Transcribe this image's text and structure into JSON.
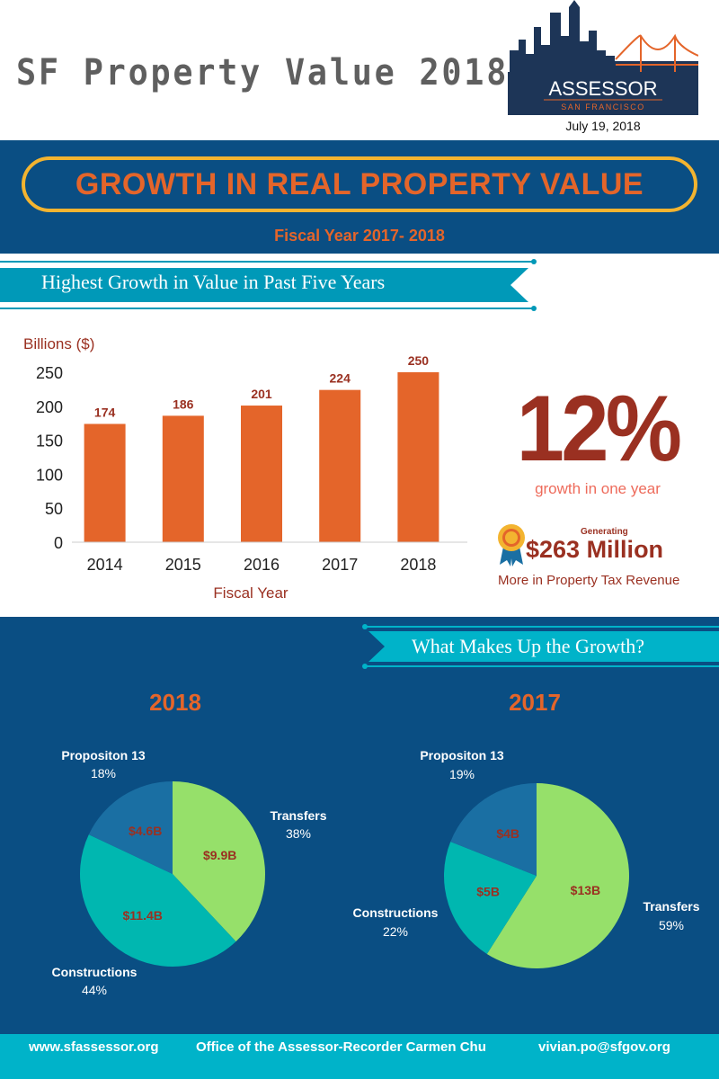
{
  "header": {
    "title": "SF Property Value 2018",
    "logo_text": "ASSESSOR",
    "logo_sub": "SAN FRANCISCO",
    "date": "July 19, 2018"
  },
  "band": {
    "title": "GROWTH IN REAL PROPERTY VALUE",
    "subtitle": "Fiscal Year 2017- 2018"
  },
  "section1": {
    "ribbon": "Highest Growth in Value in Past Five Years"
  },
  "section2": {
    "ribbon": "What Makes Up the  Growth?"
  },
  "highlight": {
    "percent": "12%",
    "percent_caption": "growth in one year",
    "generating_label": "Generating",
    "amount": "$263 Million",
    "amount_caption": "More in Property Tax Revenue"
  },
  "chart_data": [
    {
      "type": "bar",
      "categories": [
        "2014",
        "2015",
        "2016",
        "2017",
        "2018"
      ],
      "values": [
        174,
        186,
        201,
        224,
        250
      ],
      "data_labels": [
        "174",
        "186",
        "201",
        "224",
        "250"
      ],
      "title": "",
      "xlabel": "Fiscal Year",
      "ylabel": "Billions ($)",
      "ylim": [
        0,
        250
      ],
      "yticks": [
        0,
        50,
        100,
        150,
        200,
        250
      ],
      "grid": false,
      "bar_color": "#e4652a"
    },
    {
      "type": "pie",
      "title": "2018",
      "slices": [
        {
          "label": "Transfers",
          "percent": 38,
          "value_label": "$9.9B",
          "color": "#96e06a"
        },
        {
          "label": "Constructions",
          "percent": 44,
          "value_label": "$11.4B",
          "color": "#00b7b0"
        },
        {
          "label": "Propositon 13",
          "percent": 18,
          "value_label": "$4.6B",
          "color": "#1a6fa3"
        }
      ]
    },
    {
      "type": "pie",
      "title": "2017",
      "slices": [
        {
          "label": "Transfers",
          "percent": 59,
          "value_label": "$13B",
          "color": "#96e06a"
        },
        {
          "label": "Constructions",
          "percent": 22,
          "value_label": "$5B",
          "color": "#00b7b0"
        },
        {
          "label": "Propositon 13",
          "percent": 19,
          "value_label": "$4B",
          "color": "#1a6fa3"
        }
      ]
    }
  ],
  "pies": {
    "p2018": {
      "year": "2018",
      "transfers": {
        "label": "Transfers",
        "pct": "38%"
      },
      "constructions": {
        "label": "Constructions",
        "pct": "44%"
      },
      "prop13": {
        "label": "Propositon 13",
        "pct": "18%"
      }
    },
    "p2017": {
      "year": "2017",
      "transfers": {
        "label": "Transfers",
        "pct": "59%"
      },
      "constructions": {
        "label": "Constructions",
        "pct": "22%"
      },
      "prop13": {
        "label": "Propositon 13",
        "pct": "19%"
      }
    }
  },
  "footer": {
    "website": "www.sfassessor.org",
    "office": "Office of the Assessor-Recorder Carmen Chu",
    "email": "vivian.po@sfgov.org"
  },
  "colors": {
    "navy": "#0a4e83",
    "orange": "#e4652a",
    "gold": "#f3b430",
    "brick": "#9a3021",
    "teal": "#00b3c9",
    "salmon": "#ee6b5b"
  }
}
